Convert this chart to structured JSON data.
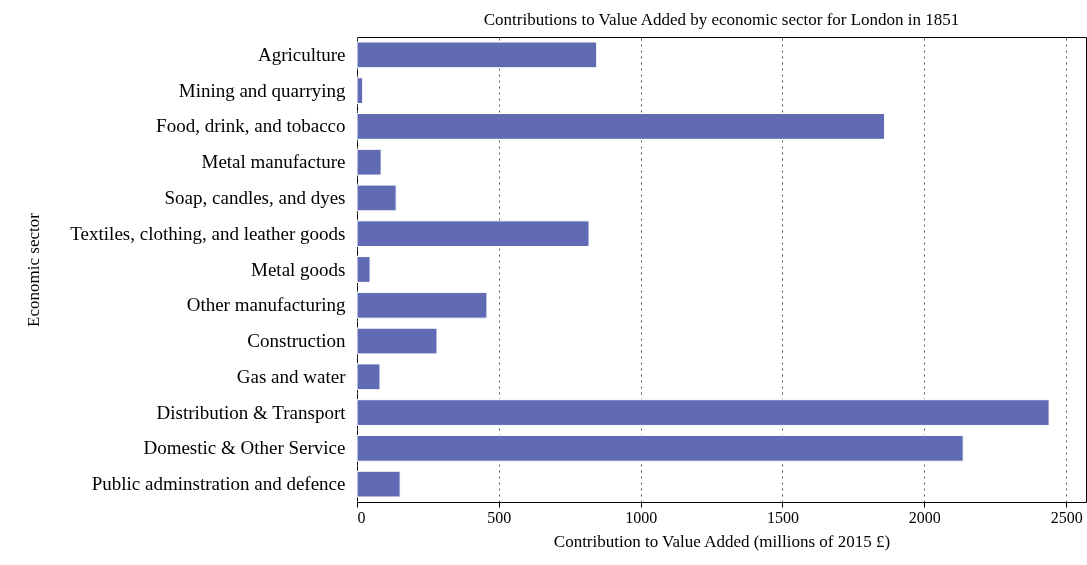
{
  "chart_data": {
    "type": "bar",
    "orientation": "horizontal",
    "title": "Contributions to Value Added by economic sector for London in 1851",
    "xlabel": "Contribution to Value Added (millions of 2015 £)",
    "ylabel": "Economic sector",
    "categories": [
      "Agriculture",
      "Mining and quarrying",
      "Food, drink, and tobacco",
      "Metal manufacture",
      "Soap, candles, and dyes",
      "Textiles, clothing, and leather goods",
      "Metal goods",
      "Other manufacturing",
      "Construction",
      "Gas and water",
      "Distribution & Transport",
      "Domestic & Other Service",
      "Public adminstration and defence"
    ],
    "values": [
      845,
      20,
      1860,
      85,
      138,
      818,
      46,
      458,
      282,
      81,
      2440,
      2137,
      152
    ],
    "color": "#616bb4",
    "xlim": [
      0,
      2570
    ],
    "xticks": [
      0,
      500,
      1000,
      1500,
      2000,
      2500
    ],
    "grid": "x"
  }
}
